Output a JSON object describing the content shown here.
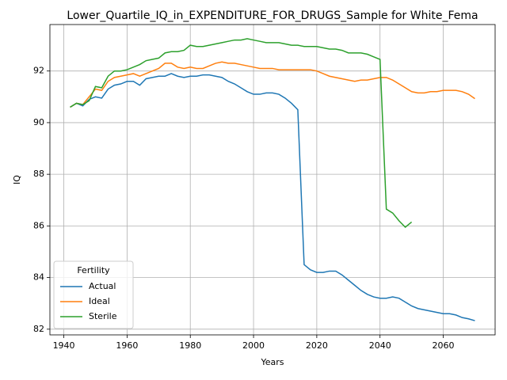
{
  "chart_data": {
    "type": "line",
    "title": "Lower_Quartile_IQ_in_EXPENDITURE_FOR_DRUGS_Sample for White_Fema",
    "x_label": "Years",
    "y_label": "IQ",
    "legend_title": "Fertility",
    "legend_position": "lower left",
    "grid": true,
    "xlim": [
      1935.6,
      2076.4
    ],
    "ylim": [
      81.78,
      93.8
    ],
    "xticks": [
      1940,
      1960,
      1980,
      2000,
      2020,
      2040,
      2060
    ],
    "yticks": [
      82,
      84,
      86,
      88,
      90,
      92
    ],
    "x": [
      1942,
      1944,
      1946,
      1948,
      1950,
      1952,
      1954,
      1956,
      1958,
      1960,
      1962,
      1964,
      1966,
      1968,
      1970,
      1972,
      1974,
      1976,
      1978,
      1980,
      1982,
      1984,
      1986,
      1988,
      1990,
      1992,
      1994,
      1996,
      1998,
      2000,
      2002,
      2004,
      2006,
      2008,
      2010,
      2012,
      2014,
      2016,
      2018,
      2020,
      2022,
      2024,
      2026,
      2028,
      2030,
      2032,
      2034,
      2036,
      2038,
      2040,
      2042,
      2044,
      2046,
      2048,
      2050,
      2052,
      2054,
      2056,
      2058,
      2060,
      2062,
      2064,
      2066,
      2068,
      2070
    ],
    "series": [
      {
        "name": "Actual",
        "color": "#1f77b4",
        "values": [
          90.6,
          90.75,
          90.65,
          90.9,
          91.0,
          90.95,
          91.3,
          91.45,
          91.5,
          91.6,
          91.6,
          91.45,
          91.7,
          91.75,
          91.8,
          91.8,
          91.9,
          91.8,
          91.75,
          91.8,
          91.8,
          91.85,
          91.85,
          91.8,
          91.75,
          91.6,
          91.5,
          91.35,
          91.2,
          91.1,
          91.1,
          91.15,
          91.15,
          91.1,
          90.95,
          90.75,
          90.5,
          84.5,
          84.3,
          84.2,
          84.2,
          84.25,
          84.25,
          84.1,
          83.9,
          83.7,
          83.5,
          83.35,
          83.25,
          83.2,
          83.2,
          83.25,
          83.2,
          83.05,
          82.9,
          82.8,
          82.75,
          82.7,
          82.65,
          82.6,
          82.6,
          82.55,
          82.45,
          82.4,
          82.33
        ]
      },
      {
        "name": "Ideal",
        "color": "#ff7f0e",
        "values": [
          90.6,
          90.75,
          90.7,
          91.0,
          91.3,
          91.25,
          91.6,
          91.75,
          91.8,
          91.85,
          91.9,
          91.8,
          91.9,
          92.0,
          92.1,
          92.3,
          92.3,
          92.15,
          92.1,
          92.15,
          92.1,
          92.1,
          92.2,
          92.3,
          92.35,
          92.3,
          92.3,
          92.25,
          92.2,
          92.15,
          92.1,
          92.1,
          92.1,
          92.05,
          92.05,
          92.05,
          92.05,
          92.05,
          92.05,
          92.0,
          91.9,
          91.8,
          91.75,
          91.7,
          91.65,
          91.6,
          91.65,
          91.65,
          91.7,
          91.75,
          91.75,
          91.65,
          91.5,
          91.35,
          91.2,
          91.15,
          91.15,
          91.2,
          91.2,
          91.25,
          91.25,
          91.25,
          91.2,
          91.1,
          90.93
        ]
      },
      {
        "name": "Sterile",
        "color": "#2ca02c",
        "values": [
          90.6,
          90.75,
          90.7,
          90.85,
          91.4,
          91.35,
          91.8,
          92.0,
          92.0,
          92.05,
          92.15,
          92.25,
          92.4,
          92.45,
          92.5,
          92.7,
          92.75,
          92.75,
          92.8,
          93.0,
          92.95,
          92.95,
          93.0,
          93.05,
          93.1,
          93.15,
          93.2,
          93.2,
          93.25,
          93.2,
          93.15,
          93.1,
          93.1,
          93.1,
          93.05,
          93.0,
          93.0,
          92.95,
          92.95,
          92.95,
          92.9,
          92.85,
          92.85,
          92.8,
          92.7,
          92.7,
          92.7,
          92.65,
          92.55,
          92.45,
          86.65,
          86.5,
          86.2,
          85.95,
          86.15,
          null,
          null,
          null,
          null,
          null,
          null,
          null,
          null,
          null,
          null
        ]
      }
    ]
  }
}
